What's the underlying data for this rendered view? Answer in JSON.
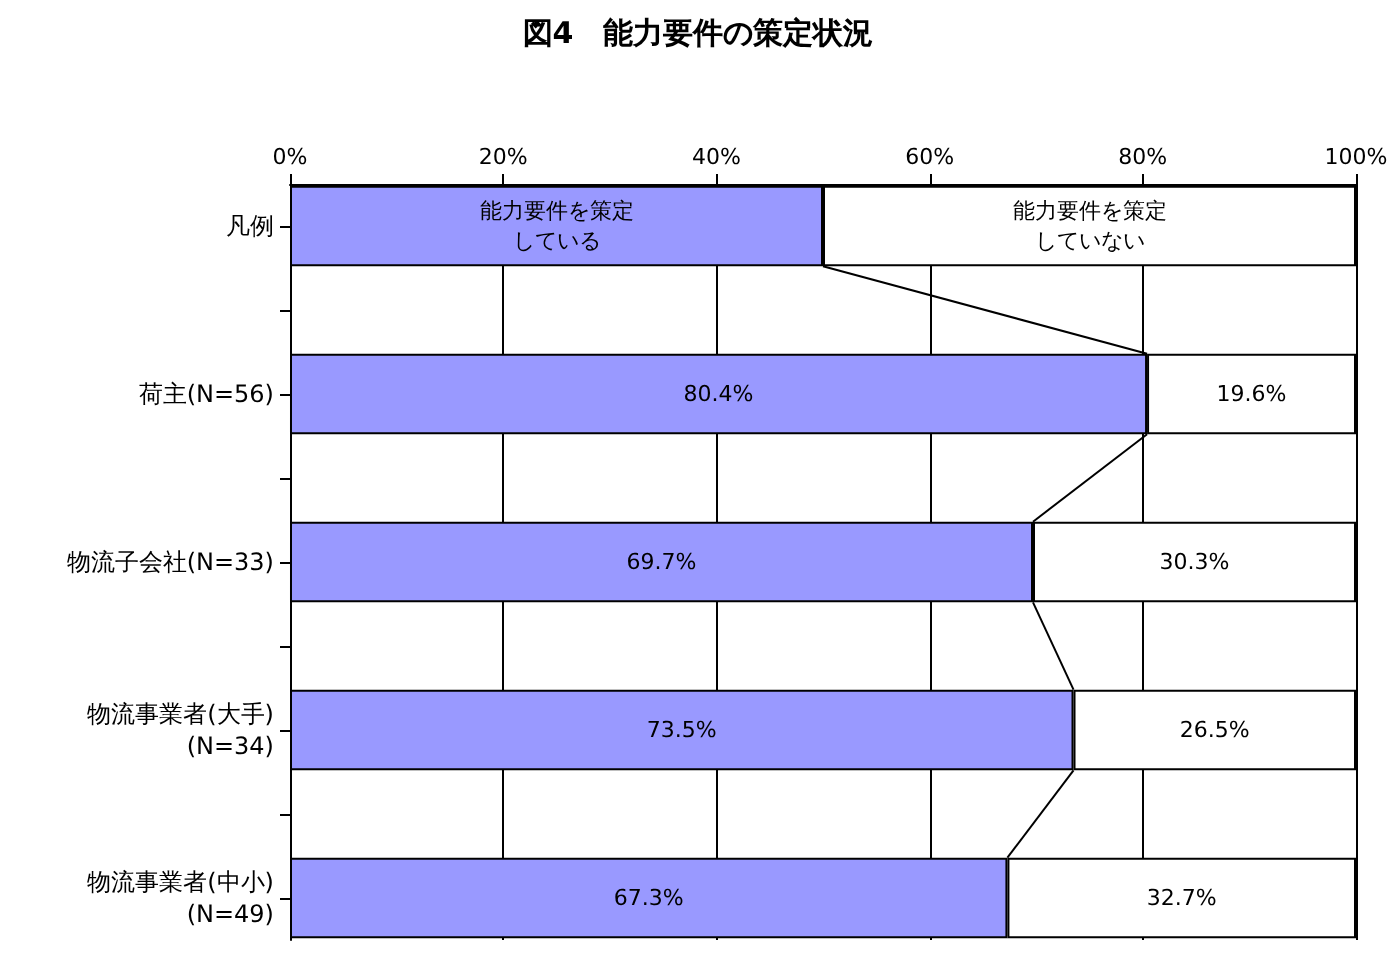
{
  "chart_data": {
    "type": "bar",
    "orientation": "horizontal",
    "stacked": true,
    "title": "図4　能力要件の策定状況",
    "categories": [
      "凡例",
      null,
      "荷主(N=56)",
      null,
      "物流子会社(N=33)",
      null,
      "物流事業者(大手)\n(N=34)",
      null,
      "物流事業者(中小)\n(N=49)"
    ],
    "series": [
      {
        "color": "#9999ff",
        "values": [
          50,
          null,
          80.4,
          null,
          69.7,
          null,
          73.5,
          null,
          67.3
        ],
        "value_labels": [
          "能力要件を策定している",
          null,
          "80.4%",
          null,
          "69.7%",
          null,
          "73.5%",
          null,
          "67.3%"
        ]
      },
      {
        "color": "#ffffff",
        "values": [
          50,
          null,
          19.6,
          null,
          30.3,
          null,
          26.5,
          null,
          32.7
        ],
        "value_labels": [
          "能力要件を策定していない",
          null,
          "19.6%",
          null,
          "30.3%",
          null,
          "26.5%",
          null,
          "32.7%"
        ]
      }
    ],
    "xlim": [
      0,
      100
    ],
    "xticks": [
      {
        "value": 0,
        "label": "0%"
      },
      {
        "value": 20,
        "label": "20%"
      },
      {
        "value": 40,
        "label": "40%"
      },
      {
        "value": 60,
        "label": "60%"
      },
      {
        "value": 80,
        "label": "80%"
      },
      {
        "value": 100,
        "label": "100%"
      }
    ],
    "grid": "x"
  }
}
